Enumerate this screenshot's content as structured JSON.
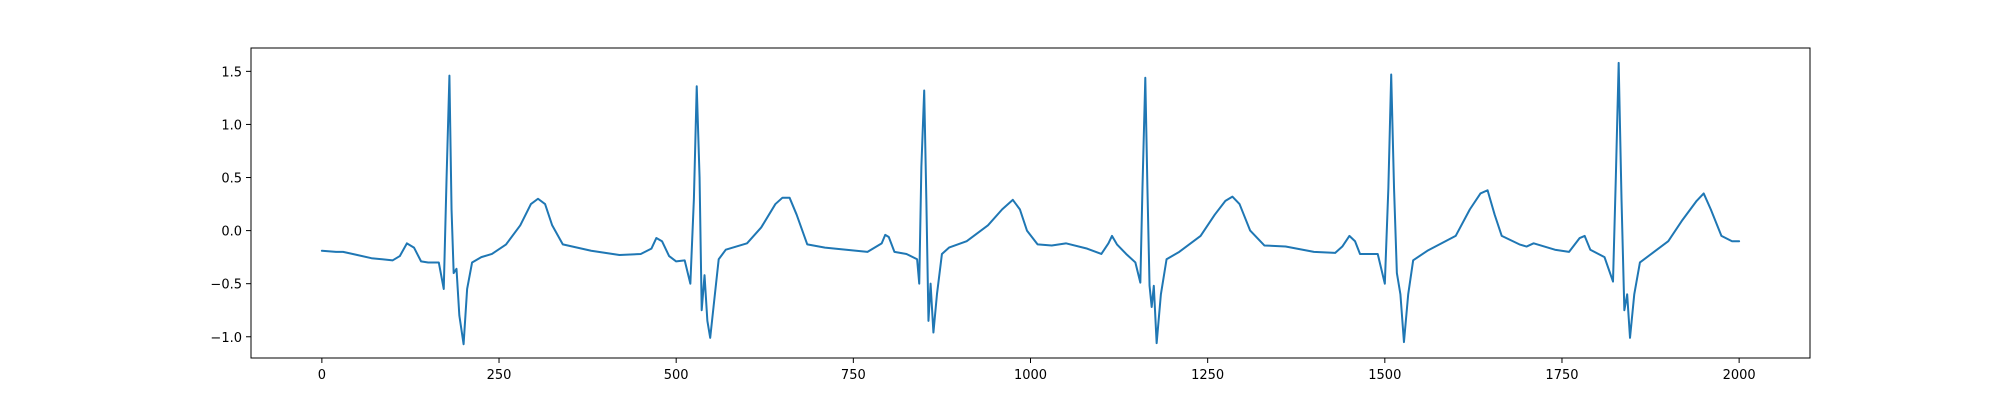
{
  "chart_data": {
    "type": "line",
    "title": "",
    "xlabel": "",
    "ylabel": "",
    "xlim": [
      -100,
      2100
    ],
    "ylim": [
      -1.2,
      1.72
    ],
    "grid": false,
    "legend": "none",
    "xticks": [
      0,
      250,
      500,
      750,
      1000,
      1250,
      1500,
      1750,
      2000
    ],
    "yticks": [
      -1.0,
      -0.5,
      0.0,
      0.5,
      1.0,
      1.5
    ],
    "xtick_labels": [
      "0",
      "250",
      "500",
      "750",
      "1000",
      "1250",
      "1500",
      "1750",
      "2000"
    ],
    "ytick_labels": [
      "−1.0",
      "−0.5",
      "0.0",
      "0.5",
      "1.0",
      "1.5"
    ],
    "series": [
      {
        "color": "#1f77b4",
        "points": [
          [
            0,
            -0.19
          ],
          [
            20,
            -0.2
          ],
          [
            30,
            -0.2
          ],
          [
            50,
            -0.23
          ],
          [
            70,
            -0.26
          ],
          [
            100,
            -0.28
          ],
          [
            110,
            -0.24
          ],
          [
            120,
            -0.12
          ],
          [
            130,
            -0.16
          ],
          [
            140,
            -0.29
          ],
          [
            150,
            -0.3
          ],
          [
            165,
            -0.3
          ],
          [
            172,
            -0.55
          ],
          [
            176,
            0.5
          ],
          [
            180,
            1.46
          ],
          [
            183,
            0.2
          ],
          [
            186,
            -0.4
          ],
          [
            190,
            -0.36
          ],
          [
            194,
            -0.8
          ],
          [
            200,
            -1.07
          ],
          [
            205,
            -0.55
          ],
          [
            212,
            -0.3
          ],
          [
            225,
            -0.25
          ],
          [
            240,
            -0.22
          ],
          [
            260,
            -0.13
          ],
          [
            280,
            0.05
          ],
          [
            295,
            0.25
          ],
          [
            305,
            0.3
          ],
          [
            315,
            0.25
          ],
          [
            325,
            0.05
          ],
          [
            340,
            -0.13
          ],
          [
            380,
            -0.19
          ],
          [
            420,
            -0.23
          ],
          [
            450,
            -0.22
          ],
          [
            465,
            -0.17
          ],
          [
            472,
            -0.07
          ],
          [
            480,
            -0.1
          ],
          [
            490,
            -0.24
          ],
          [
            500,
            -0.29
          ],
          [
            512,
            -0.28
          ],
          [
            520,
            -0.5
          ],
          [
            525,
            0.3
          ],
          [
            529,
            1.36
          ],
          [
            533,
            0.5
          ],
          [
            536,
            -0.75
          ],
          [
            540,
            -0.42
          ],
          [
            544,
            -0.85
          ],
          [
            548,
            -1.01
          ],
          [
            553,
            -0.7
          ],
          [
            560,
            -0.27
          ],
          [
            570,
            -0.18
          ],
          [
            600,
            -0.12
          ],
          [
            620,
            0.03
          ],
          [
            640,
            0.25
          ],
          [
            650,
            0.31
          ],
          [
            660,
            0.31
          ],
          [
            670,
            0.15
          ],
          [
            685,
            -0.13
          ],
          [
            710,
            -0.16
          ],
          [
            740,
            -0.18
          ],
          [
            770,
            -0.2
          ],
          [
            790,
            -0.12
          ],
          [
            795,
            -0.04
          ],
          [
            800,
            -0.06
          ],
          [
            808,
            -0.2
          ],
          [
            825,
            -0.22
          ],
          [
            840,
            -0.27
          ],
          [
            843,
            -0.5
          ],
          [
            846,
            0.6
          ],
          [
            850,
            1.32
          ],
          [
            853,
            0.3
          ],
          [
            856,
            -0.85
          ],
          [
            859,
            -0.5
          ],
          [
            863,
            -0.96
          ],
          [
            868,
            -0.6
          ],
          [
            875,
            -0.22
          ],
          [
            885,
            -0.16
          ],
          [
            910,
            -0.1
          ],
          [
            940,
            0.05
          ],
          [
            960,
            0.2
          ],
          [
            975,
            0.29
          ],
          [
            985,
            0.2
          ],
          [
            995,
            0.0
          ],
          [
            1010,
            -0.13
          ],
          [
            1030,
            -0.14
          ],
          [
            1050,
            -0.12
          ],
          [
            1080,
            -0.17
          ],
          [
            1100,
            -0.22
          ],
          [
            1110,
            -0.12
          ],
          [
            1115,
            -0.05
          ],
          [
            1122,
            -0.13
          ],
          [
            1135,
            -0.22
          ],
          [
            1148,
            -0.3
          ],
          [
            1155,
            -0.49
          ],
          [
            1158,
            0.4
          ],
          [
            1162,
            1.44
          ],
          [
            1165,
            0.4
          ],
          [
            1168,
            -0.52
          ],
          [
            1171,
            -0.72
          ],
          [
            1174,
            -0.52
          ],
          [
            1178,
            -1.06
          ],
          [
            1184,
            -0.6
          ],
          [
            1192,
            -0.27
          ],
          [
            1210,
            -0.2
          ],
          [
            1240,
            -0.05
          ],
          [
            1260,
            0.15
          ],
          [
            1275,
            0.28
          ],
          [
            1285,
            0.32
          ],
          [
            1295,
            0.25
          ],
          [
            1310,
            0.0
          ],
          [
            1330,
            -0.14
          ],
          [
            1360,
            -0.15
          ],
          [
            1400,
            -0.2
          ],
          [
            1430,
            -0.21
          ],
          [
            1440,
            -0.15
          ],
          [
            1450,
            -0.05
          ],
          [
            1458,
            -0.1
          ],
          [
            1465,
            -0.22
          ],
          [
            1490,
            -0.22
          ],
          [
            1500,
            -0.5
          ],
          [
            1505,
            0.4
          ],
          [
            1509,
            1.47
          ],
          [
            1513,
            0.4
          ],
          [
            1517,
            -0.4
          ],
          [
            1522,
            -0.6
          ],
          [
            1527,
            -1.05
          ],
          [
            1533,
            -0.6
          ],
          [
            1540,
            -0.28
          ],
          [
            1560,
            -0.19
          ],
          [
            1600,
            -0.05
          ],
          [
            1620,
            0.2
          ],
          [
            1635,
            0.35
          ],
          [
            1645,
            0.38
          ],
          [
            1655,
            0.15
          ],
          [
            1665,
            -0.05
          ],
          [
            1690,
            -0.13
          ],
          [
            1700,
            -0.15
          ],
          [
            1710,
            -0.12
          ],
          [
            1740,
            -0.18
          ],
          [
            1760,
            -0.2
          ],
          [
            1775,
            -0.07
          ],
          [
            1782,
            -0.05
          ],
          [
            1790,
            -0.18
          ],
          [
            1810,
            -0.25
          ],
          [
            1822,
            -0.48
          ],
          [
            1826,
            0.5
          ],
          [
            1830,
            1.58
          ],
          [
            1834,
            0.3
          ],
          [
            1838,
            -0.75
          ],
          [
            1842,
            -0.6
          ],
          [
            1846,
            -1.01
          ],
          [
            1852,
            -0.6
          ],
          [
            1860,
            -0.3
          ],
          [
            1880,
            -0.2
          ],
          [
            1900,
            -0.1
          ],
          [
            1920,
            0.1
          ],
          [
            1940,
            0.28
          ],
          [
            1950,
            0.35
          ],
          [
            1960,
            0.2
          ],
          [
            1975,
            -0.05
          ],
          [
            1990,
            -0.1
          ],
          [
            2000,
            -0.1
          ]
        ]
      }
    ]
  }
}
